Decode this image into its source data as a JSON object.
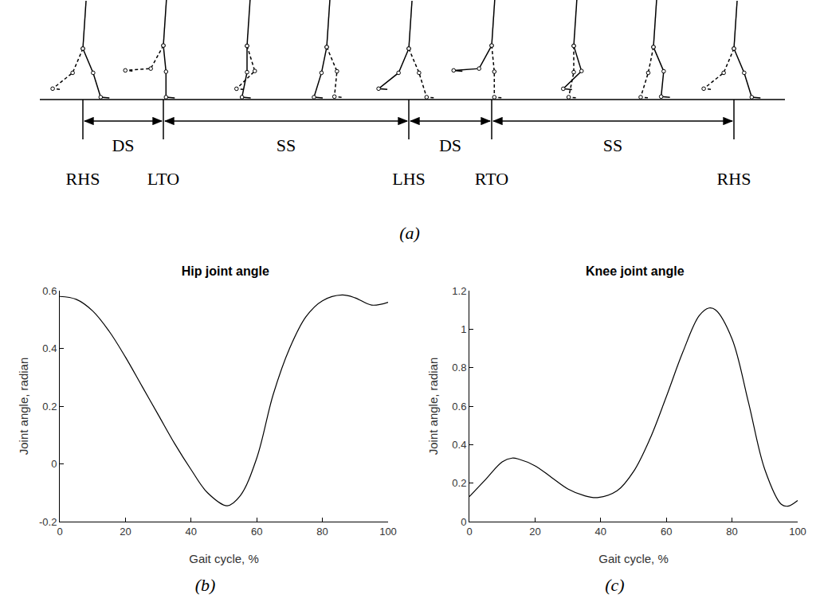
{
  "diagram": {
    "phases": [
      "DS",
      "SS",
      "DS",
      "SS"
    ],
    "events": [
      "RHS",
      "LTO",
      "LHS",
      "RTO",
      "RHS"
    ],
    "label": "(a)"
  },
  "chart_data": [
    {
      "type": "line",
      "title": "Hip joint angle",
      "x_label": "Gait cycle, %",
      "y_label": "Joint angle, radian",
      "x": [
        0,
        5,
        10,
        15,
        20,
        25,
        30,
        35,
        40,
        45,
        51,
        55,
        60,
        65,
        70,
        75,
        80,
        86,
        90,
        95,
        100
      ],
      "values": [
        0.58,
        0.57,
        0.53,
        0.46,
        0.37,
        0.27,
        0.17,
        0.07,
        -0.02,
        -0.1,
        -0.145,
        -0.11,
        0.02,
        0.24,
        0.4,
        0.51,
        0.565,
        0.585,
        0.575,
        0.55,
        0.56
      ],
      "color": "#000000",
      "xlim": [
        0,
        100
      ],
      "xticks": [
        0,
        20,
        40,
        60,
        80,
        100
      ],
      "ylim": [
        -0.2,
        0.6
      ],
      "yticks": [
        -0.2,
        0,
        0.2,
        0.4,
        0.6
      ],
      "grid": false,
      "label": "(b)"
    },
    {
      "type": "line",
      "title": "Knee joint angle",
      "x_label": "Gait cycle, %",
      "y_label": "Joint angle, radian",
      "x": [
        0,
        5,
        10,
        13,
        15,
        20,
        25,
        30,
        35,
        39,
        45,
        50,
        55,
        60,
        65,
        70,
        73,
        75,
        80,
        85,
        90,
        95,
        97,
        100
      ],
      "values": [
        0.13,
        0.22,
        0.31,
        0.33,
        0.325,
        0.29,
        0.23,
        0.17,
        0.135,
        0.125,
        0.16,
        0.26,
        0.43,
        0.65,
        0.88,
        1.07,
        1.11,
        1.1,
        0.95,
        0.62,
        0.27,
        0.09,
        0.08,
        0.11
      ],
      "color": "#000000",
      "xlim": [
        0,
        100
      ],
      "xticks": [
        0,
        20,
        40,
        60,
        80,
        100
      ],
      "ylim": [
        0,
        1.2
      ],
      "yticks": [
        0,
        0.2,
        0.4,
        0.6,
        0.8,
        1,
        1.2
      ],
      "grid": false,
      "label": "(c)"
    }
  ]
}
